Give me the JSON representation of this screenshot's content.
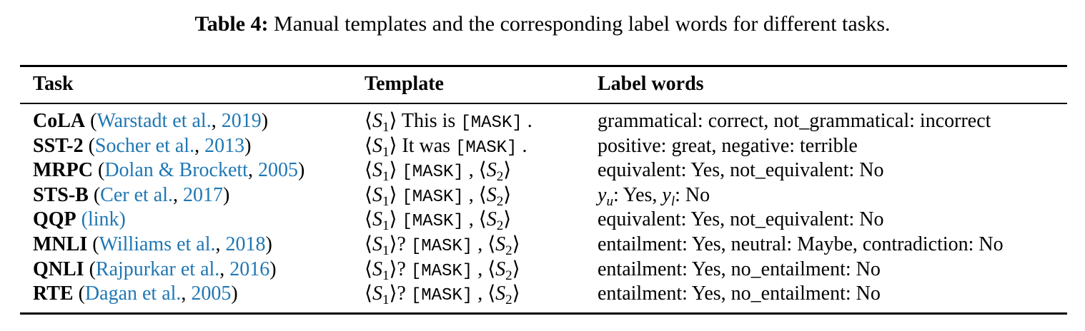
{
  "caption": {
    "label": "Table 4:",
    "text": "Manual templates and the corresponding label words for different tasks."
  },
  "headers": {
    "task": "Task",
    "template": "Template",
    "label_words": "Label words"
  },
  "rows": [
    {
      "task": "CoLA",
      "cite_open": "(",
      "cite_author": "Warstadt et al.",
      "cite_sep": ", ",
      "cite_year": "2019",
      "cite_close": ")",
      "tpl_s1": "S",
      "tpl_s1_sub": "1",
      "tpl_text": "This is",
      "tpl_mask": "[MASK]",
      "tpl_end": ".",
      "tpl_s2": "",
      "tpl_s2_sub": "",
      "label_words": "grammatical: correct, not_grammatical: incorrect"
    },
    {
      "task": "SST-2",
      "cite_open": "(",
      "cite_author": "Socher et al.",
      "cite_sep": ", ",
      "cite_year": "2013",
      "cite_close": ")",
      "tpl_s1": "S",
      "tpl_s1_sub": "1",
      "tpl_text": "It was",
      "tpl_mask": "[MASK]",
      "tpl_end": ".",
      "label_words": "positive: great, negative: terrible"
    },
    {
      "task": "MRPC",
      "cite_open": "(",
      "cite_author": "Dolan & Brockett",
      "cite_sep": ", ",
      "cite_year": "2005",
      "cite_close": ")",
      "tpl_s1": "S",
      "tpl_s1_sub": "1",
      "tpl_mask": "[MASK]",
      "tpl_comma": ",",
      "tpl_s2": "S",
      "tpl_s2_sub": "2",
      "label_words": "equivalent: Yes, not_equivalent: No"
    },
    {
      "task": "STS-B",
      "cite_open": "(",
      "cite_author": "Cer et al.",
      "cite_sep": ", ",
      "cite_year": "2017",
      "cite_close": ")",
      "tpl_s1": "S",
      "tpl_s1_sub": "1",
      "tpl_mask": "[MASK]",
      "tpl_comma": ",",
      "tpl_s2": "S",
      "tpl_s2_sub": "2",
      "label_yu": "y",
      "label_yu_sub": "u",
      "label_yes": ": Yes, ",
      "label_yl": "y",
      "label_yl_sub": "l",
      "label_no": ": No"
    },
    {
      "task": "QQP",
      "cite_link": "(link)",
      "tpl_s1": "S",
      "tpl_s1_sub": "1",
      "tpl_mask": "[MASK]",
      "tpl_comma": ",",
      "tpl_s2": "S",
      "tpl_s2_sub": "2",
      "label_words": "equivalent: Yes, not_equivalent: No"
    },
    {
      "task": "MNLI",
      "cite_open": "(",
      "cite_author": "Williams et al.",
      "cite_sep": ", ",
      "cite_year": "2018",
      "cite_close": ")",
      "tpl_s1": "S",
      "tpl_s1_sub": "1",
      "tpl_q": "?",
      "tpl_mask": "[MASK]",
      "tpl_comma": ",",
      "tpl_s2": "S",
      "tpl_s2_sub": "2",
      "label_words": "entailment: Yes, neutral: Maybe, contradiction: No"
    },
    {
      "task": "QNLI",
      "cite_open": "(",
      "cite_author": "Rajpurkar et al.",
      "cite_sep": ", ",
      "cite_year": "2016",
      "cite_close": ")",
      "tpl_s1": "S",
      "tpl_s1_sub": "1",
      "tpl_q": "?",
      "tpl_mask": "[MASK]",
      "tpl_comma": ",",
      "tpl_s2": "S",
      "tpl_s2_sub": "2",
      "label_words": "entailment: Yes, no_entailment: No"
    },
    {
      "task": "RTE",
      "cite_open": "(",
      "cite_author": "Dagan et al.",
      "cite_sep": ", ",
      "cite_year": "2005",
      "cite_close": ")",
      "tpl_s1": "S",
      "tpl_s1_sub": "1",
      "tpl_q": "?",
      "tpl_mask": "[MASK]",
      "tpl_comma": ",",
      "tpl_s2": "S",
      "tpl_s2_sub": "2",
      "label_words": "entailment: Yes, no_entailment: No"
    }
  ],
  "symbols": {
    "langle": "⟨",
    "rangle": "⟩"
  },
  "colors": {
    "citation": "#1f77b4",
    "text": "#000000"
  }
}
